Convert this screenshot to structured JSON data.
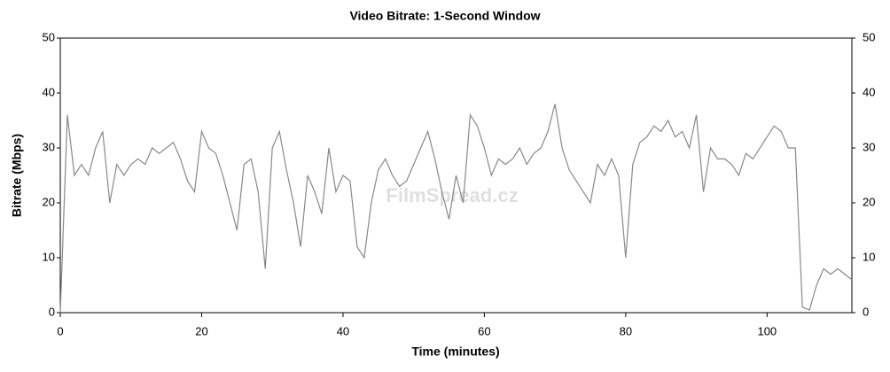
{
  "chart_data": {
    "type": "line",
    "title": "Video Bitrate: 1-Second Window",
    "xlabel": "Time (minutes)",
    "ylabel": "Bitrate (Mbps)",
    "watermark": "FilmSpread.cz",
    "x": [
      0,
      1,
      2,
      3,
      4,
      5,
      6,
      7,
      8,
      9,
      10,
      11,
      12,
      13,
      14,
      15,
      16,
      17,
      18,
      19,
      20,
      21,
      22,
      23,
      24,
      25,
      26,
      27,
      28,
      29,
      30,
      31,
      32,
      33,
      34,
      35,
      36,
      37,
      38,
      39,
      40,
      41,
      42,
      43,
      44,
      45,
      46,
      47,
      48,
      49,
      50,
      51,
      52,
      53,
      54,
      55,
      56,
      57,
      58,
      59,
      60,
      61,
      62,
      63,
      64,
      65,
      66,
      67,
      68,
      69,
      70,
      71,
      72,
      73,
      74,
      75,
      76,
      77,
      78,
      79,
      80,
      81,
      82,
      83,
      84,
      85,
      86,
      87,
      88,
      89,
      90,
      91,
      92,
      93,
      94,
      95,
      96,
      97,
      98,
      99,
      100,
      101,
      102,
      103,
      104,
      105,
      106,
      107,
      108,
      109,
      110,
      111,
      112
    ],
    "series": [
      {
        "name": "Bitrate",
        "color": "#888888",
        "values": [
          0,
          36,
          25,
          27,
          25,
          30,
          33,
          20,
          27,
          25,
          27,
          28,
          27,
          30,
          29,
          30,
          31,
          28,
          24,
          22,
          33,
          30,
          29,
          25,
          20,
          15,
          27,
          28,
          22,
          8,
          30,
          33,
          26,
          20,
          12,
          25,
          22,
          18,
          30,
          22,
          25,
          24,
          12,
          10,
          20,
          26,
          28,
          25,
          23,
          24,
          27,
          30,
          33,
          28,
          22,
          17,
          25,
          20,
          36,
          34,
          30,
          25,
          28,
          27,
          28,
          30,
          27,
          29,
          30,
          33,
          38,
          30,
          26,
          24,
          22,
          20,
          27,
          25,
          28,
          25,
          10,
          27,
          31,
          32,
          34,
          33,
          35,
          32,
          33,
          30,
          36,
          22,
          30,
          28,
          28,
          27,
          25,
          29,
          28,
          30,
          32,
          34,
          33,
          30,
          30,
          1,
          0.5,
          5,
          8,
          7,
          8,
          7,
          6
        ]
      }
    ],
    "xlim": [
      0,
      112
    ],
    "xticks": [
      0,
      20,
      40,
      60,
      80,
      100
    ],
    "ylim": [
      0,
      50
    ],
    "yticks": [
      0,
      10,
      20,
      30,
      40,
      50
    ],
    "y2lim": [
      0,
      50
    ],
    "y2ticks": [
      0,
      10,
      20,
      30,
      40,
      50
    ],
    "grid": false
  }
}
